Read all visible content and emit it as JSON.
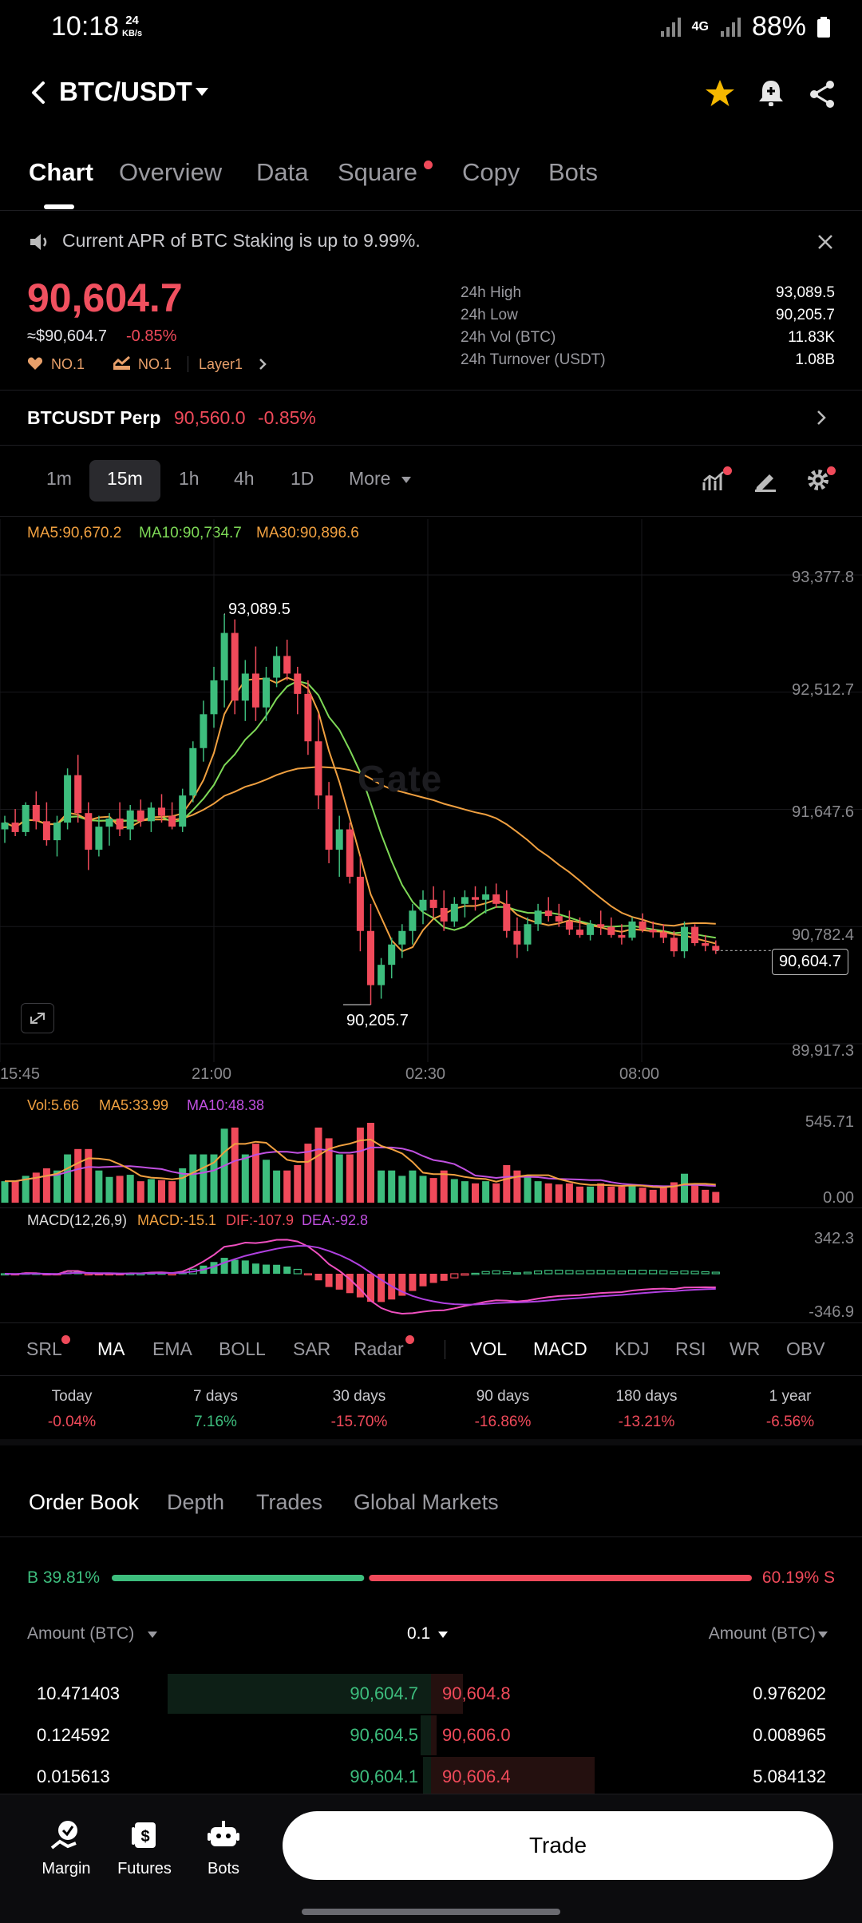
{
  "status_bar": {
    "time": "10:18",
    "speed_value": "24",
    "speed_unit": "KB/s",
    "network": "4G",
    "battery": "88%"
  },
  "header": {
    "pair": "BTC/USDT"
  },
  "tabs": [
    {
      "label": "Chart"
    },
    {
      "label": "Overview"
    },
    {
      "label": "Data"
    },
    {
      "label": "Square"
    },
    {
      "label": "Copy"
    },
    {
      "label": "Bots"
    }
  ],
  "announcement": {
    "text": "Current APR of BTC Staking is up to 9.99%."
  },
  "price": {
    "last": "90,604.7",
    "fiat": "≈$90,604.7",
    "change": "-0.85%",
    "rank1": "NO.1",
    "rank2": "NO.1",
    "category": "Layer1"
  },
  "stats": [
    {
      "label": "24h High",
      "value": "93,089.5"
    },
    {
      "label": "24h Low",
      "value": "90,205.7"
    },
    {
      "label": "24h Vol (BTC)",
      "value": "11.83K"
    },
    {
      "label": "24h Turnover (USDT)",
      "value": "1.08B"
    }
  ],
  "perp": {
    "label": "BTCUSDT Perp",
    "price": "90,560.0",
    "change": "-0.85%"
  },
  "intervals": [
    {
      "label": "1m"
    },
    {
      "label": "15m"
    },
    {
      "label": "1h"
    },
    {
      "label": "4h"
    },
    {
      "label": "1D"
    },
    {
      "label": "More"
    }
  ],
  "ma_legend": {
    "ma5": "MA5:90,670.2",
    "ma10": "MA10:90,734.7",
    "ma30": "MA30:90,896.6"
  },
  "watermark": "Gate",
  "chart_data": {
    "type": "candlestick",
    "y_ticks": [
      "93,377.8",
      "92,512.7",
      "91,647.6",
      "90,782.4",
      "89,917.3"
    ],
    "x_ticks": [
      "15:45",
      "21:00",
      "02:30",
      "08:00"
    ],
    "high_label": "93,089.5",
    "low_label": "90,205.7",
    "current_label": "90,604.7",
    "ylim": [
      89917.3,
      93377.8
    ],
    "candles": [
      [
        91500,
        91600,
        91400,
        91550
      ],
      [
        91550,
        91650,
        91450,
        91480
      ],
      [
        91480,
        91700,
        91450,
        91680
      ],
      [
        91680,
        91780,
        91500,
        91560
      ],
      [
        91560,
        91700,
        91380,
        91420
      ],
      [
        91420,
        91600,
        91300,
        91550
      ],
      [
        91550,
        91950,
        91500,
        91900
      ],
      [
        91900,
        92050,
        91550,
        91620
      ],
      [
        91620,
        91700,
        91200,
        91350
      ],
      [
        91350,
        91600,
        91300,
        91520
      ],
      [
        91520,
        91620,
        91380,
        91580
      ],
      [
        91580,
        91700,
        91450,
        91500
      ],
      [
        91500,
        91680,
        91420,
        91640
      ],
      [
        91640,
        91720,
        91520,
        91560
      ],
      [
        91560,
        91700,
        91480,
        91660
      ],
      [
        91660,
        91760,
        91550,
        91600
      ],
      [
        91600,
        91700,
        91500,
        91520
      ],
      [
        91520,
        91800,
        91480,
        91750
      ],
      [
        91750,
        92150,
        91700,
        92100
      ],
      [
        92100,
        92450,
        92000,
        92350
      ],
      [
        92350,
        92700,
        92250,
        92600
      ],
      [
        92600,
        93089.5,
        92400,
        92950
      ],
      [
        92950,
        93050,
        92350,
        92450
      ],
      [
        92450,
        92750,
        92300,
        92650
      ],
      [
        92650,
        92850,
        92300,
        92400
      ],
      [
        92400,
        92700,
        92300,
        92620
      ],
      [
        92620,
        92850,
        92550,
        92780
      ],
      [
        92780,
        92900,
        92600,
        92650
      ],
      [
        92650,
        92700,
        92350,
        92500
      ],
      [
        92500,
        92600,
        92050,
        92150
      ],
      [
        92150,
        92350,
        91650,
        91750
      ],
      [
        91750,
        91850,
        91250,
        91350
      ],
      [
        91350,
        91600,
        91150,
        91500
      ],
      [
        91500,
        91550,
        91100,
        91150
      ],
      [
        91150,
        91300,
        90600,
        90750
      ],
      [
        90750,
        90950,
        90205.7,
        90350
      ],
      [
        90350,
        90550,
        90250,
        90500
      ],
      [
        90500,
        90700,
        90400,
        90650
      ],
      [
        90650,
        90800,
        90550,
        90750
      ],
      [
        90750,
        90950,
        90650,
        90900
      ],
      [
        90900,
        91050,
        90800,
        90980
      ],
      [
        90980,
        91080,
        90850,
        90920
      ],
      [
        90920,
        91050,
        90750,
        90820
      ],
      [
        90820,
        91000,
        90780,
        90950
      ],
      [
        90950,
        91050,
        90850,
        91000
      ],
      [
        91000,
        91080,
        90900,
        90980
      ],
      [
        90980,
        91080,
        90880,
        91020
      ],
      [
        91020,
        91100,
        90920,
        90950
      ],
      [
        90950,
        91050,
        90700,
        90750
      ],
      [
        90750,
        90850,
        90550,
        90650
      ],
      [
        90650,
        90850,
        90600,
        90800
      ],
      [
        90800,
        90950,
        90750,
        90900
      ],
      [
        90900,
        91000,
        90820,
        90860
      ],
      [
        90860,
        90950,
        90780,
        90820
      ],
      [
        90820,
        90900,
        90720,
        90760
      ],
      [
        90760,
        90850,
        90700,
        90720
      ],
      [
        90720,
        90830,
        90680,
        90800
      ],
      [
        90800,
        90900,
        90720,
        90780
      ],
      [
        90780,
        90850,
        90700,
        90720
      ],
      [
        90720,
        90800,
        90650,
        90700
      ],
      [
        90700,
        90850,
        90680,
        90820
      ],
      [
        90820,
        90880,
        90740,
        90760
      ],
      [
        90760,
        90820,
        90700,
        90740
      ],
      [
        90740,
        90800,
        90660,
        90700
      ],
      [
        90700,
        90750,
        90560,
        90600
      ],
      [
        90600,
        90820,
        90550,
        90780
      ],
      [
        90780,
        90800,
        90640,
        90660
      ],
      [
        90660,
        90720,
        90600,
        90640
      ],
      [
        90640,
        90680,
        90580,
        90604.7
      ]
    ]
  },
  "volume_legend": {
    "vol": "Vol:5.66",
    "ma5": "MA5:33.99",
    "ma10": "MA10:48.38"
  },
  "volume_axis": {
    "top": "545.71",
    "bottom": "0.00"
  },
  "macd_legend": {
    "name": "MACD(12,26,9)",
    "macd": "MACD:-15.1",
    "dif": "DIF:-107.9",
    "dea": "DEA:-92.8"
  },
  "macd_axis": {
    "top": "342.3",
    "bottom": "-346.9"
  },
  "indicator_tabs_main": [
    {
      "label": "SRL"
    },
    {
      "label": "MA"
    },
    {
      "label": "EMA"
    },
    {
      "label": "BOLL"
    },
    {
      "label": "SAR"
    },
    {
      "label": "Radar"
    }
  ],
  "indicator_tabs_sub": [
    {
      "label": "VOL"
    },
    {
      "label": "MACD"
    },
    {
      "label": "KDJ"
    },
    {
      "label": "RSI"
    },
    {
      "label": "WR"
    },
    {
      "label": "OBV"
    }
  ],
  "performance": [
    {
      "label": "Today",
      "value": "-0.04%"
    },
    {
      "label": "7 days",
      "value": "7.16%"
    },
    {
      "label": "30 days",
      "value": "-15.70%"
    },
    {
      "label": "90 days",
      "value": "-16.86%"
    },
    {
      "label": "180 days",
      "value": "-13.21%"
    },
    {
      "label": "1 year",
      "value": "-6.56%"
    }
  ],
  "order_book_tabs": [
    {
      "label": "Order Book"
    },
    {
      "label": "Depth"
    },
    {
      "label": "Trades"
    },
    {
      "label": "Global Markets"
    }
  ],
  "ratio": {
    "buy": "B 39.81%",
    "sell": "60.19% S",
    "buy_fraction": 0.3981
  },
  "ob_header": {
    "left": "Amount (BTC)",
    "center": "0.1",
    "right": "Amount (BTC)"
  },
  "order_book_rows": [
    {
      "bid_amount": "10.471403",
      "bid_price": "90,604.7",
      "ask_price": "90,604.8",
      "ask_amount": "0.976202",
      "bid_depth": 1.0,
      "ask_depth": 0.12
    },
    {
      "bid_amount": "0.124592",
      "bid_price": "90,604.5",
      "ask_price": "90,606.0",
      "ask_amount": "0.008965",
      "bid_depth": 0.04,
      "ask_depth": 0.02
    },
    {
      "bid_amount": "0.015613",
      "bid_price": "90,604.1",
      "ask_price": "90,606.4",
      "ask_amount": "5.084132",
      "bid_depth": 0.03,
      "ask_depth": 0.62
    }
  ],
  "bottom_nav": [
    {
      "label": "Margin"
    },
    {
      "label": "Futures"
    },
    {
      "label": "Bots"
    }
  ],
  "trade_button": "Trade",
  "colors": {
    "up": "#3dbd7d",
    "down": "#f04a5a",
    "ma5": "#f0a040",
    "ma10": "#7ed957",
    "ma30": "#f0a040",
    "ma10_vol": "#c050e0"
  }
}
